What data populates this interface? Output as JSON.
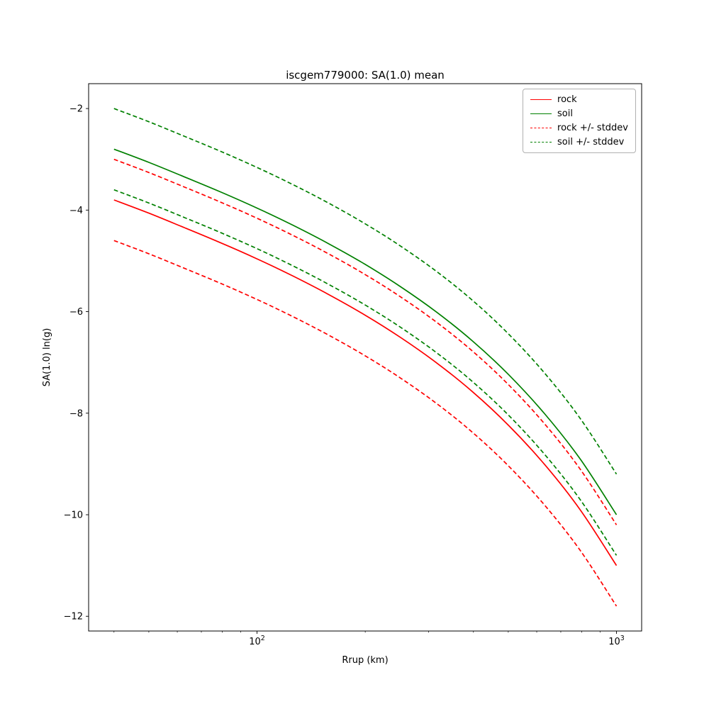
{
  "chart_data": {
    "type": "line",
    "title": "iscgem779000: SA(1.0) mean",
    "xlabel": "Rrup (km)",
    "ylabel": "SA(1.0) ln(g)",
    "x_scale": "log",
    "grid": false,
    "legend_position": "upper right",
    "xlim": [
      34,
      1175
    ],
    "ylim": [
      -12.29,
      -1.51
    ],
    "x_ticks": [
      {
        "value": 100,
        "base": "10",
        "exp": "2"
      },
      {
        "value": 1000,
        "base": "10",
        "exp": "3"
      }
    ],
    "y_ticks": [
      {
        "value": -2,
        "label": "−2"
      },
      {
        "value": -4,
        "label": "−4"
      },
      {
        "value": -6,
        "label": "−6"
      },
      {
        "value": -8,
        "label": "−8"
      },
      {
        "value": -10,
        "label": "−10"
      },
      {
        "value": -12,
        "label": "−12"
      }
    ],
    "stddev": 0.8,
    "x": [
      40,
      50,
      63,
      79,
      100,
      126,
      158,
      200,
      251,
      316,
      398,
      501,
      631,
      794,
      1000
    ],
    "series": [
      {
        "name": "rock",
        "color": "#ff0000",
        "style": "solid",
        "values": [
          -3.8,
          -4.06,
          -4.35,
          -4.64,
          -4.96,
          -5.3,
          -5.66,
          -6.07,
          -6.51,
          -7.01,
          -7.58,
          -8.24,
          -9.01,
          -9.91,
          -11.0
        ]
      },
      {
        "name": "soil",
        "color": "#008000",
        "style": "solid",
        "values": [
          -2.8,
          -3.06,
          -3.35,
          -3.64,
          -3.96,
          -4.3,
          -4.66,
          -5.07,
          -5.51,
          -6.01,
          -6.58,
          -7.24,
          -8.01,
          -8.91,
          -10.0
        ]
      },
      {
        "name": "rock plus stddev",
        "color": "#ff0000",
        "style": "dashed",
        "values": [
          -3.0,
          -3.26,
          -3.55,
          -3.84,
          -4.16,
          -4.5,
          -4.86,
          -5.27,
          -5.71,
          -6.21,
          -6.78,
          -7.44,
          -8.21,
          -9.11,
          -10.2
        ]
      },
      {
        "name": "rock minus stddev",
        "color": "#ff0000",
        "style": "dashed",
        "values": [
          -4.6,
          -4.86,
          -5.15,
          -5.44,
          -5.76,
          -6.1,
          -6.46,
          -6.87,
          -7.31,
          -7.81,
          -8.38,
          -9.04,
          -9.81,
          -10.71,
          -11.8
        ]
      },
      {
        "name": "soil plus stddev",
        "color": "#008000",
        "style": "dashed",
        "values": [
          -2.0,
          -2.26,
          -2.55,
          -2.84,
          -3.16,
          -3.5,
          -3.86,
          -4.27,
          -4.71,
          -5.21,
          -5.78,
          -6.44,
          -7.21,
          -8.11,
          -9.2
        ]
      },
      {
        "name": "soil minus stddev",
        "color": "#008000",
        "style": "dashed",
        "values": [
          -3.6,
          -3.86,
          -4.15,
          -4.44,
          -4.76,
          -5.1,
          -5.46,
          -5.87,
          -6.31,
          -6.81,
          -7.38,
          -8.04,
          -8.81,
          -9.71,
          -10.8
        ]
      }
    ],
    "legend": [
      {
        "label": "rock",
        "color": "#ff0000",
        "style": "solid"
      },
      {
        "label": "soil",
        "color": "#008000",
        "style": "solid"
      },
      {
        "label": "rock +/- stddev",
        "color": "#ff0000",
        "style": "dashed"
      },
      {
        "label": "soil +/- stddev",
        "color": "#008000",
        "style": "dashed"
      }
    ]
  }
}
